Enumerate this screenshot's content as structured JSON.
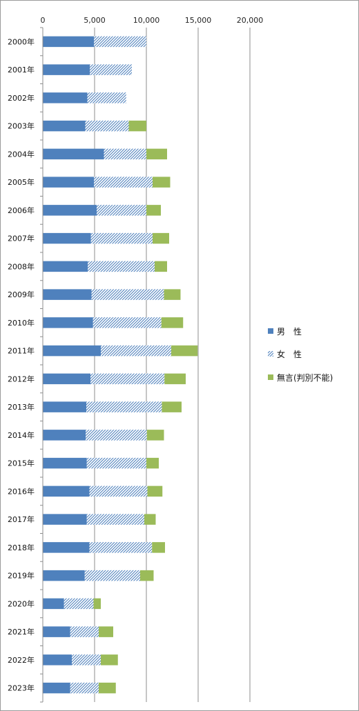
{
  "chart_data": {
    "type": "bar",
    "orientation": "horizontal",
    "stacked": true,
    "categories": [
      "2000年",
      "2001年",
      "2002年",
      "2003年",
      "2004年",
      "2005年",
      "2006年",
      "2007年",
      "2008年",
      "2009年",
      "2010年",
      "2011年",
      "2012年",
      "2013年",
      "2014年",
      "2015年",
      "2016年",
      "2017年",
      "2018年",
      "2019年",
      "2020年",
      "2021年",
      "2022年",
      "2023年"
    ],
    "series": [
      {
        "name": "男　性",
        "color": "#4f81bd",
        "pattern": "solid",
        "values": [
          4950,
          4550,
          4300,
          4100,
          5900,
          4950,
          5200,
          4650,
          4350,
          4700,
          4850,
          5600,
          4600,
          4200,
          4150,
          4250,
          4500,
          4250,
          4500,
          4050,
          2050,
          2650,
          2800,
          2650
        ]
      },
      {
        "name": "女　性",
        "color": "#4f81bd",
        "pattern": "diagonal-hatch",
        "values": [
          5050,
          4050,
          3750,
          4200,
          4100,
          5650,
          4800,
          5950,
          6450,
          7000,
          6600,
          6800,
          7150,
          7300,
          5900,
          5750,
          5600,
          5550,
          6050,
          5350,
          2850,
          2750,
          2800,
          2750
        ]
      },
      {
        "name": "無言(判別不能)",
        "color": "#9bbb59",
        "pattern": "solid",
        "values": [
          0,
          0,
          0,
          1700,
          2000,
          1700,
          1400,
          1600,
          1200,
          1600,
          2100,
          2550,
          2050,
          1900,
          1650,
          1200,
          1450,
          1100,
          1250,
          1300,
          700,
          1400,
          1650,
          1650
        ]
      }
    ],
    "xlim": [
      0,
      20000
    ],
    "xticks": [
      "0",
      "5,000",
      "10,000",
      "15,000",
      "20,000"
    ],
    "grid": true,
    "legend_position": "right"
  }
}
